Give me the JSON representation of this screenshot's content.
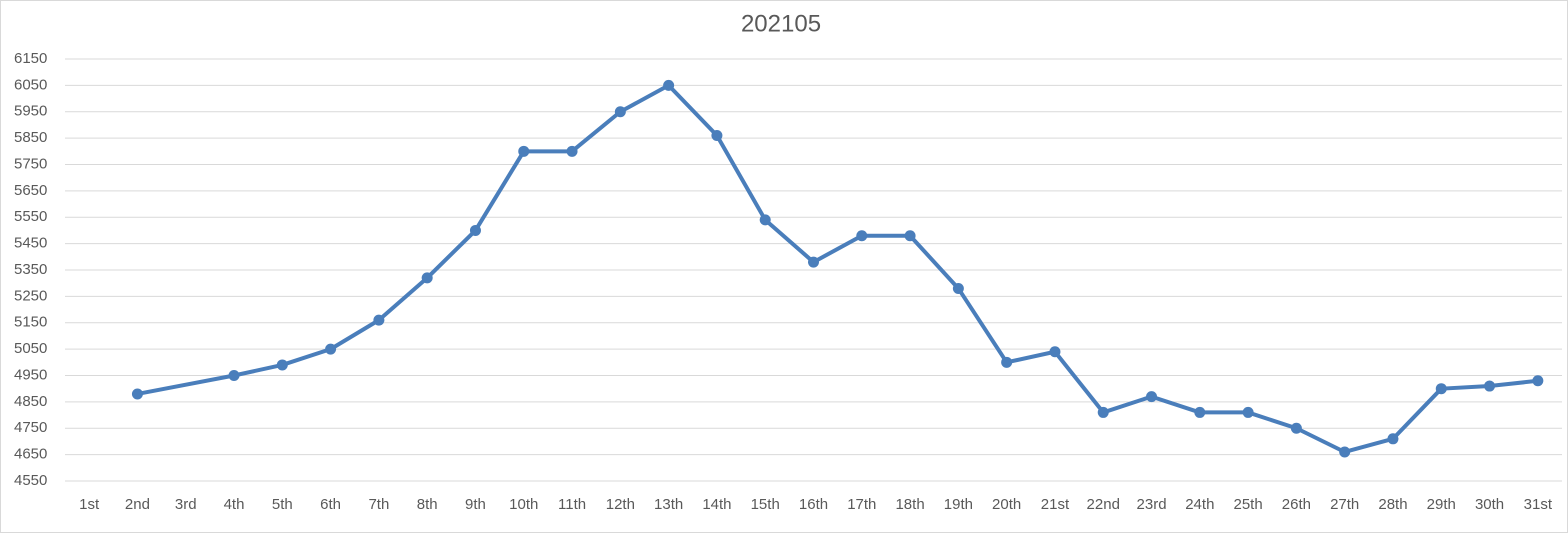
{
  "chart_data": {
    "type": "line",
    "title": "202105",
    "categories": [
      "1st",
      "2nd",
      "3rd",
      "4th",
      "5th",
      "6th",
      "7th",
      "8th",
      "9th",
      "10th",
      "11th",
      "12th",
      "13th",
      "14th",
      "15th",
      "16th",
      "17th",
      "18th",
      "19th",
      "20th",
      "21st",
      "22nd",
      "23rd",
      "24th",
      "25th",
      "26th",
      "27th",
      "28th",
      "29th",
      "30th",
      "31st"
    ],
    "series": [
      {
        "color": "#4a7ebb",
        "values": [
          null,
          4880,
          null,
          4950,
          4990,
          5050,
          5160,
          5320,
          5500,
          5800,
          5800,
          5950,
          6050,
          5860,
          5540,
          5380,
          5480,
          5480,
          5280,
          5000,
          5040,
          4810,
          4870,
          4810,
          4810,
          4750,
          4660,
          4710,
          4900,
          4910,
          4930
        ]
      }
    ],
    "connect_gaps": true,
    "ylim": [
      4550,
      6150
    ],
    "yticks": [
      4550,
      4650,
      4750,
      4850,
      4950,
      5050,
      5150,
      5250,
      5350,
      5450,
      5550,
      5650,
      5750,
      5850,
      5950,
      6050,
      6150
    ],
    "grid": true
  }
}
